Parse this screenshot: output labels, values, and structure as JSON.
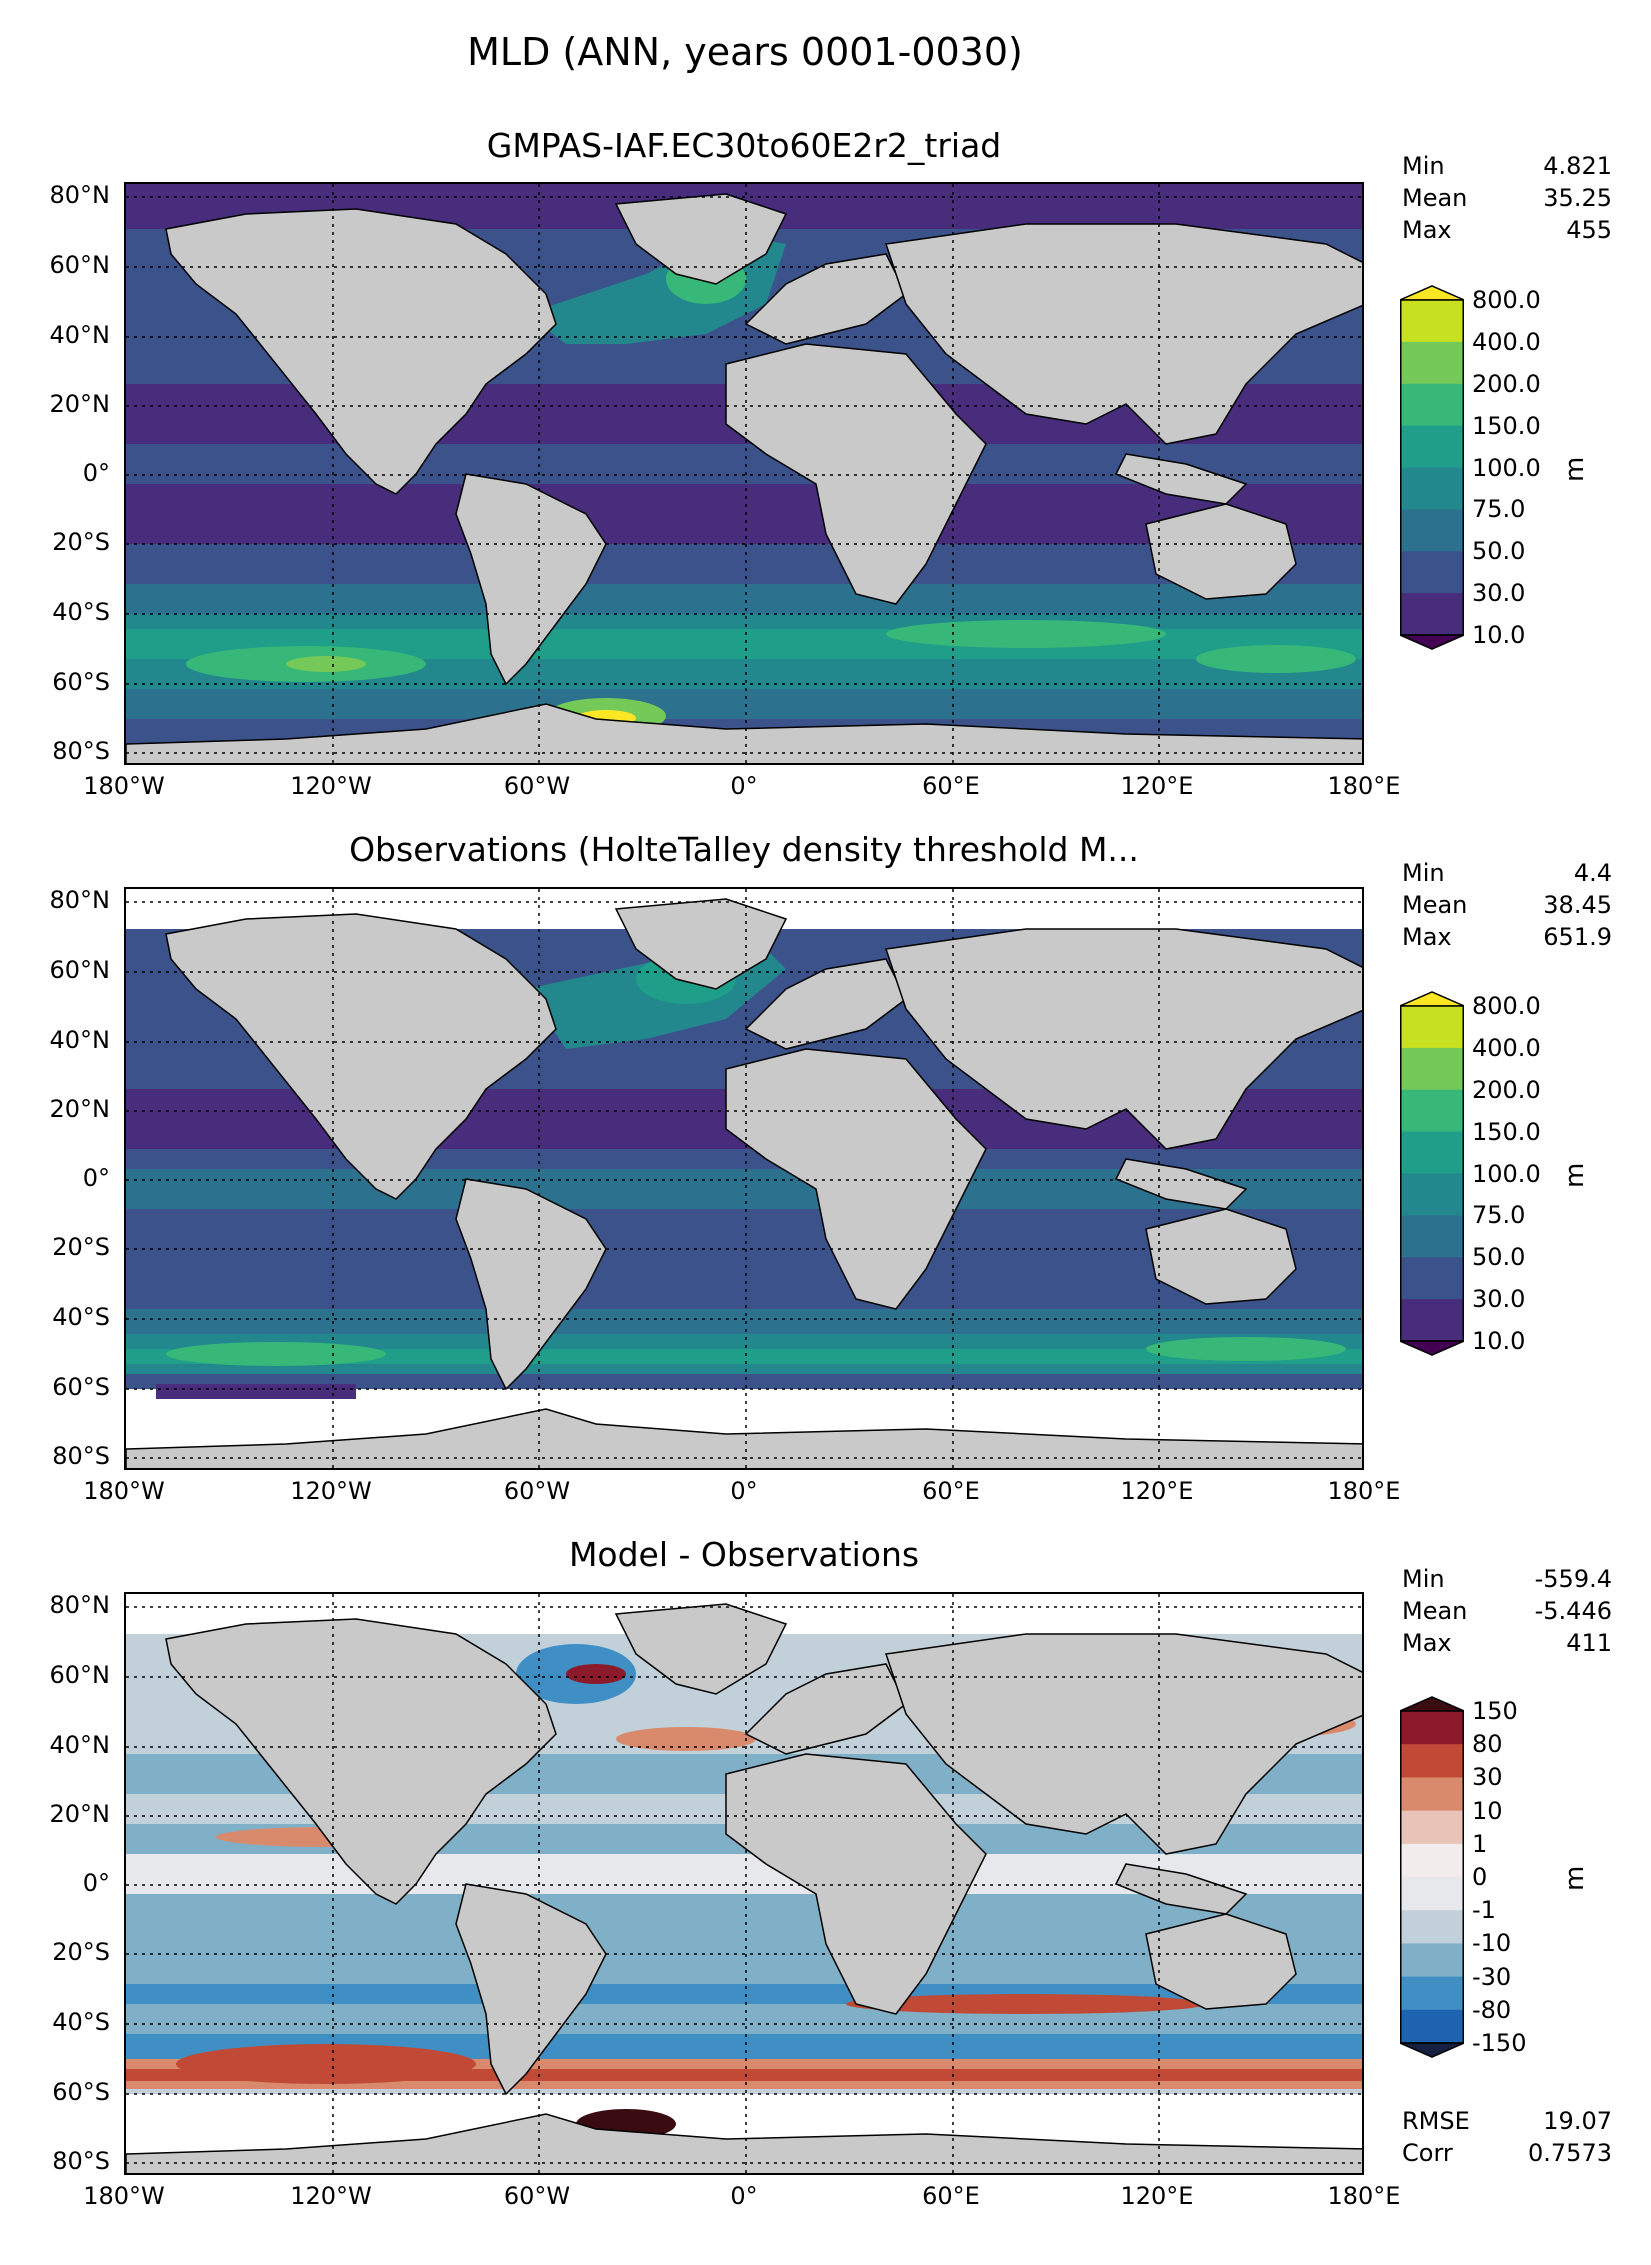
{
  "figure_title": "MLD (ANN, years 0001-0030)",
  "lat_ticks": [
    "80°N",
    "60°N",
    "40°N",
    "20°N",
    "0°",
    "20°S",
    "40°S",
    "60°S",
    "80°S"
  ],
  "lon_ticks": [
    "180°W",
    "120°W",
    "60°W",
    "0°",
    "60°E",
    "120°E",
    "180°E"
  ],
  "panels": [
    {
      "title": "GMPAS-IAF.EC30to60E2r2_triad",
      "stats": [
        {
          "label": "Min",
          "value": "4.821"
        },
        {
          "label": "Mean",
          "value": "35.25"
        },
        {
          "label": "Max",
          "value": "455"
        }
      ],
      "colorbar": {
        "ticks": [
          "800.0",
          "400.0",
          "200.0",
          "150.0",
          "100.0",
          "75.0",
          "50.0",
          "30.0",
          "10.0"
        ],
        "colors": [
          "#c7e020",
          "#74c959",
          "#37b878",
          "#1f9e89",
          "#22888e",
          "#2c728e",
          "#3b528b",
          "#472d7b"
        ],
        "extend_top": "#fde725",
        "extend_bottom": "#440154",
        "unit": "m"
      }
    },
    {
      "title": "Observations (HolteTalley density threshold M...",
      "stats": [
        {
          "label": "Min",
          "value": "4.4"
        },
        {
          "label": "Mean",
          "value": "38.45"
        },
        {
          "label": "Max",
          "value": "651.9"
        }
      ],
      "colorbar": {
        "ticks": [
          "800.0",
          "400.0",
          "200.0",
          "150.0",
          "100.0",
          "75.0",
          "50.0",
          "30.0",
          "10.0"
        ],
        "colors": [
          "#c7e020",
          "#74c959",
          "#37b878",
          "#1f9e89",
          "#22888e",
          "#2c728e",
          "#3b528b",
          "#472d7b"
        ],
        "extend_top": "#fde725",
        "extend_bottom": "#440154",
        "unit": "m"
      }
    },
    {
      "title": "Model - Observations",
      "stats": [
        {
          "label": "Min",
          "value": "-559.4"
        },
        {
          "label": "Mean",
          "value": "-5.446"
        },
        {
          "label": "Max",
          "value": "411"
        }
      ],
      "colorbar": {
        "ticks": [
          "150",
          "80",
          "30",
          "10",
          "1",
          "0",
          "-1",
          "-10",
          "-30",
          "-80",
          "-150"
        ],
        "colors": [
          "#8b1a2b",
          "#c04a35",
          "#d98a6c",
          "#e8c4b8",
          "#f2ecec",
          "#e6e8ec",
          "#c2d0da",
          "#7fb0c8",
          "#3f8fc4",
          "#1e63b0"
        ],
        "extend_top": "#3a0c12",
        "extend_bottom": "#152040",
        "unit": "m"
      },
      "extra_stats": [
        {
          "label": "RMSE",
          "value": "19.07"
        },
        {
          "label": "Corr",
          "value": "0.7573"
        }
      ]
    }
  ]
}
